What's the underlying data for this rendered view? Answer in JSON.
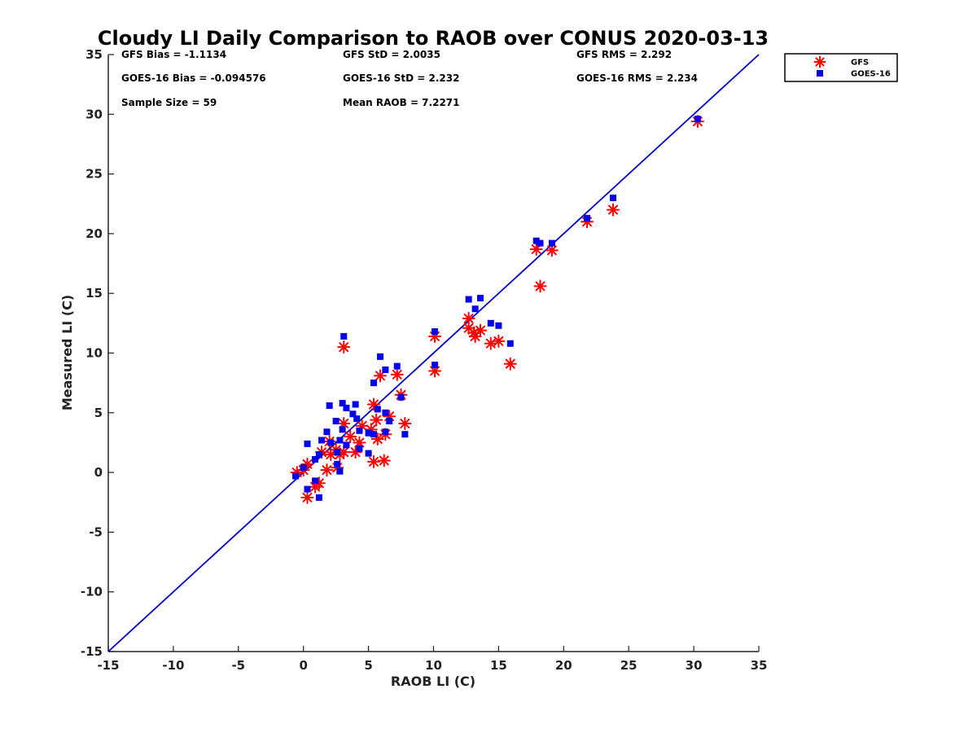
{
  "chart_data": {
    "type": "scatter",
    "title": "Cloudy LI Daily Comparison to RAOB over CONUS 2020-03-13",
    "xlabel": "RAOB LI (C)",
    "ylabel": "Measured LI (C)",
    "xlim": [
      -15,
      35
    ],
    "ylim": [
      -15,
      35
    ],
    "x_ticks": [
      "-15",
      "-10",
      "-5",
      "0",
      "5",
      "10",
      "15",
      "20",
      "25",
      "30",
      "35"
    ],
    "y_ticks": [
      "-15",
      "-10",
      "-5",
      "0",
      "5",
      "10",
      "15",
      "20",
      "25",
      "30",
      "35"
    ],
    "grid": false,
    "legend_position": "outside top-right",
    "reference_line": {
      "from": [
        -15,
        -15
      ],
      "to": [
        35,
        35
      ],
      "color": "#0000cc"
    },
    "stats": [
      {
        "text": "GFS Bias = -1.1134",
        "col": 0,
        "row": 0
      },
      {
        "text": "GFS StD = 2.0035",
        "col": 1,
        "row": 0
      },
      {
        "text": "GFS RMS = 2.292",
        "col": 2,
        "row": 0
      },
      {
        "text": "GOES-16 Bias = -0.094576",
        "col": 0,
        "row": 1
      },
      {
        "text": "GOES-16 StD = 2.232",
        "col": 1,
        "row": 1
      },
      {
        "text": "GOES-16 RMS = 2.234",
        "col": 2,
        "row": 1
      },
      {
        "text": "Sample Size = 59",
        "col": 0,
        "row": 2
      },
      {
        "text": "Mean RAOB = 7.2271",
        "col": 1,
        "row": 2
      }
    ],
    "series": [
      {
        "name": "GFS",
        "marker": "asterisk",
        "color": "#ff0000",
        "points": [
          [
            30.3,
            29.4
          ],
          [
            23.8,
            22.0
          ],
          [
            21.8,
            21.0
          ],
          [
            19.1,
            18.6
          ],
          [
            17.9,
            18.7
          ],
          [
            18.2,
            15.6
          ],
          [
            12.7,
            12.9
          ],
          [
            12.7,
            12.1
          ],
          [
            13.6,
            11.9
          ],
          [
            13.1,
            11.7
          ],
          [
            13.2,
            11.4
          ],
          [
            14.4,
            10.8
          ],
          [
            15.0,
            11.0
          ],
          [
            15.9,
            9.1
          ],
          [
            10.1,
            11.4
          ],
          [
            10.1,
            8.5
          ],
          [
            3.1,
            10.5
          ],
          [
            5.9,
            8.1
          ],
          [
            7.2,
            8.2
          ],
          [
            7.5,
            6.5
          ],
          [
            5.4,
            5.7
          ],
          [
            6.6,
            4.7
          ],
          [
            7.8,
            4.1
          ],
          [
            5.6,
            4.4
          ],
          [
            4.5,
            3.9
          ],
          [
            5.2,
            3.6
          ],
          [
            3.1,
            4.1
          ],
          [
            3.6,
            3.0
          ],
          [
            4.3,
            2.5
          ],
          [
            5.7,
            2.8
          ],
          [
            6.3,
            3.2
          ],
          [
            2.0,
            2.6
          ],
          [
            2.5,
            1.9
          ],
          [
            2.8,
            1.5
          ],
          [
            3.1,
            1.7
          ],
          [
            4.0,
            1.7
          ],
          [
            1.4,
            1.7
          ],
          [
            2.1,
            1.5
          ],
          [
            5.4,
            0.9
          ],
          [
            6.2,
            1.0
          ],
          [
            1.8,
            0.2
          ],
          [
            2.6,
            0.4
          ],
          [
            -0.5,
            0.0
          ],
          [
            0.0,
            0.2
          ],
          [
            0.3,
            0.7
          ],
          [
            1.2,
            -0.9
          ],
          [
            0.9,
            -1.2
          ],
          [
            0.3,
            -2.1
          ]
        ]
      },
      {
        "name": "GOES-16",
        "marker": "square",
        "color": "#0000ee",
        "points": [
          [
            30.3,
            29.6
          ],
          [
            23.8,
            23.0
          ],
          [
            21.8,
            21.3
          ],
          [
            19.1,
            19.2
          ],
          [
            17.9,
            19.4
          ],
          [
            18.2,
            19.2
          ],
          [
            12.7,
            14.5
          ],
          [
            13.6,
            14.6
          ],
          [
            13.2,
            13.7
          ],
          [
            14.4,
            12.5
          ],
          [
            15.0,
            12.3
          ],
          [
            15.9,
            10.8
          ],
          [
            10.1,
            11.8
          ],
          [
            10.1,
            9.0
          ],
          [
            3.1,
            11.4
          ],
          [
            5.9,
            9.7
          ],
          [
            7.2,
            8.9
          ],
          [
            6.3,
            8.6
          ],
          [
            5.4,
            7.5
          ],
          [
            7.5,
            6.3
          ],
          [
            5.7,
            5.3
          ],
          [
            6.3,
            5.0
          ],
          [
            6.6,
            4.3
          ],
          [
            7.8,
            3.2
          ],
          [
            4.0,
            5.7
          ],
          [
            3.0,
            5.8
          ],
          [
            3.3,
            5.4
          ],
          [
            2.0,
            5.6
          ],
          [
            3.8,
            4.9
          ],
          [
            4.1,
            4.5
          ],
          [
            4.3,
            3.5
          ],
          [
            5.0,
            3.3
          ],
          [
            5.4,
            3.2
          ],
          [
            6.3,
            3.4
          ],
          [
            3.0,
            3.6
          ],
          [
            2.5,
            4.3
          ],
          [
            1.8,
            3.4
          ],
          [
            1.4,
            2.7
          ],
          [
            2.1,
            2.5
          ],
          [
            2.8,
            2.7
          ],
          [
            3.3,
            2.3
          ],
          [
            4.3,
            2.0
          ],
          [
            5.0,
            1.6
          ],
          [
            2.6,
            1.7
          ],
          [
            1.2,
            1.5
          ],
          [
            0.9,
            1.1
          ],
          [
            2.6,
            0.7
          ],
          [
            2.8,
            0.1
          ],
          [
            -0.6,
            -0.3
          ],
          [
            0.0,
            0.4
          ],
          [
            0.3,
            2.4
          ],
          [
            0.9,
            -0.7
          ],
          [
            0.3,
            -1.4
          ],
          [
            1.2,
            -2.1
          ]
        ]
      }
    ]
  }
}
